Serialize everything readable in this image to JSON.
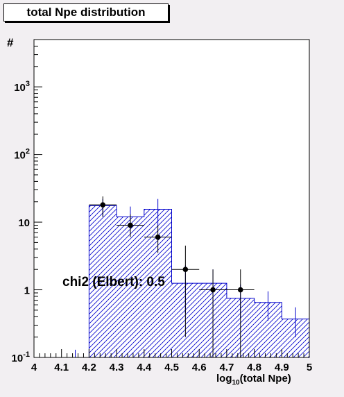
{
  "chart_data": {
    "type": "histogram",
    "title": "total Npe distribution",
    "xlabel_prefix": "log",
    "xlabel_sub": "10",
    "xlabel_suffix": "(total Npe)",
    "ylabel": "#",
    "annotation": "chi2 (Elbert): 0.5",
    "xlim": [
      4.0,
      5.0
    ],
    "ylim": [
      0.1,
      5000
    ],
    "yscale": "log",
    "xticks": [
      "4",
      "4.1",
      "4.2",
      "4.3",
      "4.4",
      "4.5",
      "4.6",
      "4.7",
      "4.8",
      "4.9",
      "5"
    ],
    "yticks": [
      {
        "base": "10",
        "exp": "-1"
      },
      {
        "base": "1",
        "exp": ""
      },
      {
        "base": "10",
        "exp": ""
      },
      {
        "base": "10",
        "exp": "2"
      },
      {
        "base": "10",
        "exp": "3"
      }
    ],
    "simulation_histogram": {
      "bin_edges": [
        4.0,
        4.2,
        4.3,
        4.4,
        4.5,
        4.6,
        4.7,
        4.8,
        4.9,
        5.0
      ],
      "values": [
        0.1,
        17.5,
        12,
        15.5,
        1.25,
        1.25,
        0.75,
        0.65,
        0.37
      ],
      "errors": [
        {
          "x": 4.05,
          "lo": 0.1,
          "hi": 0.1
        },
        {
          "x": 4.15,
          "lo": 0.1,
          "hi": 0.13
        },
        {
          "x": 4.25,
          "lo": 12,
          "hi": 22
        },
        {
          "x": 4.35,
          "lo": 6.5,
          "hi": 17
        },
        {
          "x": 4.45,
          "lo": 9,
          "hi": 22
        },
        {
          "x": 4.55,
          "lo": 0.45,
          "hi": 2.3
        },
        {
          "x": 4.65,
          "lo": 0.55,
          "hi": 2.0
        },
        {
          "x": 4.75,
          "lo": 0.38,
          "hi": 1.2
        },
        {
          "x": 4.85,
          "lo": 0.35,
          "hi": 0.95
        },
        {
          "x": 4.95,
          "lo": 0.2,
          "hi": 0.55
        }
      ]
    },
    "data_points": [
      {
        "x": 4.25,
        "y": 18,
        "ylo": 12,
        "yhi": 24
      },
      {
        "x": 4.35,
        "y": 9,
        "ylo": 6,
        "yhi": 13
      },
      {
        "x": 4.45,
        "y": 6,
        "ylo": 3.5,
        "yhi": 9
      },
      {
        "x": 4.55,
        "y": 2,
        "ylo": 0.2,
        "yhi": 4.5
      },
      {
        "x": 4.65,
        "y": 1,
        "ylo": 0.1,
        "yhi": 2
      },
      {
        "x": 4.75,
        "y": 1,
        "ylo": 0.1,
        "yhi": 2
      }
    ],
    "colors": {
      "simulation": "#0000cc",
      "data": "#000000",
      "frame": "#000000",
      "pad": "#ffffff"
    }
  }
}
